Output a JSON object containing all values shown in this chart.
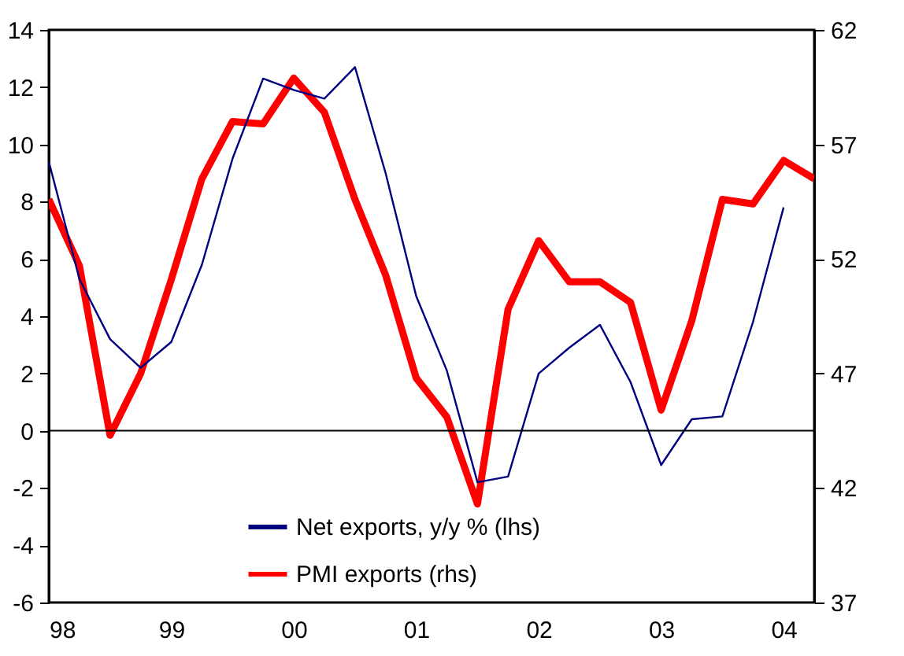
{
  "chart_data": {
    "type": "line",
    "x": [
      1998,
      1998.25,
      1998.5,
      1998.75,
      1999,
      1999.25,
      1999.5,
      1999.75,
      2000,
      2000.25,
      2000.5,
      2000.75,
      2001,
      2001.25,
      2001.5,
      2001.75,
      2002,
      2002.25,
      2002.5,
      2002.75,
      2003,
      2003.25,
      2003.5,
      2003.75,
      2004,
      2004.25
    ],
    "series": [
      {
        "name": "Net exports, y/y % (lhs)",
        "color": "#000080",
        "values": [
          9.4,
          5.3,
          3.2,
          2.2,
          3.1,
          5.8,
          9.5,
          12.3,
          11.9,
          11.6,
          12.7,
          9.0,
          4.7,
          2.1,
          -1.8,
          -1.6,
          2.0,
          2.9,
          3.7,
          1.7,
          -1.2,
          0.4,
          0.5,
          3.8,
          7.8,
          null
        ]
      },
      {
        "name": "PMI exports (rhs)",
        "color": "#ff0000",
        "axis": "y2",
        "values": [
          54.6,
          51.7,
          44.3,
          47.0,
          51.1,
          55.5,
          58.0,
          57.9,
          59.9,
          58.4,
          54.6,
          51.3,
          46.8,
          45.1,
          41.3,
          49.8,
          52.8,
          51.0,
          51.0,
          50.1,
          45.4,
          49.3,
          54.6,
          54.4,
          56.3,
          55.5
        ]
      }
    ],
    "xlim": [
      1998,
      2004.25
    ],
    "xticks": [
      {
        "value": 1998,
        "label": "98"
      },
      {
        "value": 1999,
        "label": "99"
      },
      {
        "value": 2000,
        "label": "00"
      },
      {
        "value": 2001,
        "label": "01"
      },
      {
        "value": 2002,
        "label": "02"
      },
      {
        "value": 2003,
        "label": "03"
      },
      {
        "value": 2004,
        "label": "04"
      }
    ],
    "ylim": [
      -6,
      14
    ],
    "yticks": [
      -6,
      -4,
      -2,
      0,
      2,
      4,
      6,
      8,
      10,
      12,
      14
    ],
    "y2lim": [
      37,
      62
    ],
    "y2ticks": [
      37,
      42,
      47,
      52,
      57,
      62
    ],
    "ref_lines": [
      {
        "axis": "y",
        "value": 0,
        "color": "#000000"
      }
    ],
    "legend": "bottom",
    "grid": false
  }
}
